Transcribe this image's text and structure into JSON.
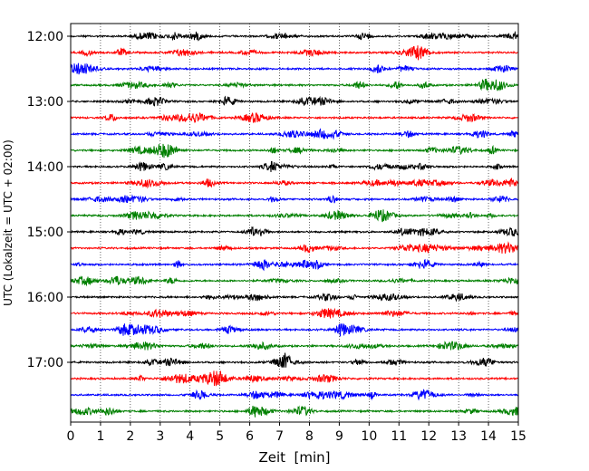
{
  "chart_data": {
    "type": "line",
    "title": "",
    "xlabel": "Zeit  [min]",
    "ylabel": "UTC (Lokalzeit = UTC + 02:00)",
    "xlim": [
      0,
      15
    ],
    "x_ticks": [
      "0",
      "1",
      "2",
      "3",
      "4",
      "5",
      "6",
      "7",
      "8",
      "9",
      "10",
      "11",
      "12",
      "13",
      "14",
      "15"
    ],
    "y_tick_labels": [
      "12:00",
      "13:00",
      "14:00",
      "15:00",
      "16:00",
      "17:00"
    ],
    "grid": "vertical dotted",
    "series_colors": [
      "#000000",
      "#ff0000",
      "#0000ff",
      "#008000"
    ],
    "traces": [
      {
        "start": "12:00",
        "color": "#000000"
      },
      {
        "start": "12:15",
        "color": "#ff0000"
      },
      {
        "start": "12:30",
        "color": "#0000ff"
      },
      {
        "start": "12:45",
        "color": "#008000"
      },
      {
        "start": "13:00",
        "color": "#000000"
      },
      {
        "start": "13:15",
        "color": "#ff0000"
      },
      {
        "start": "13:30",
        "color": "#0000ff"
      },
      {
        "start": "13:45",
        "color": "#008000"
      },
      {
        "start": "14:00",
        "color": "#000000"
      },
      {
        "start": "14:15",
        "color": "#ff0000"
      },
      {
        "start": "14:30",
        "color": "#0000ff"
      },
      {
        "start": "14:45",
        "color": "#008000"
      },
      {
        "start": "15:00",
        "color": "#000000"
      },
      {
        "start": "15:15",
        "color": "#ff0000"
      },
      {
        "start": "15:30",
        "color": "#0000ff"
      },
      {
        "start": "15:45",
        "color": "#008000"
      },
      {
        "start": "16:00",
        "color": "#000000"
      },
      {
        "start": "16:15",
        "color": "#ff0000"
      },
      {
        "start": "16:30",
        "color": "#0000ff"
      },
      {
        "start": "16:45",
        "color": "#008000"
      },
      {
        "start": "17:00",
        "color": "#000000"
      },
      {
        "start": "17:15",
        "color": "#ff0000"
      },
      {
        "start": "17:30",
        "color": "#0000ff"
      },
      {
        "start": "17:45",
        "color": "#008000"
      }
    ]
  }
}
